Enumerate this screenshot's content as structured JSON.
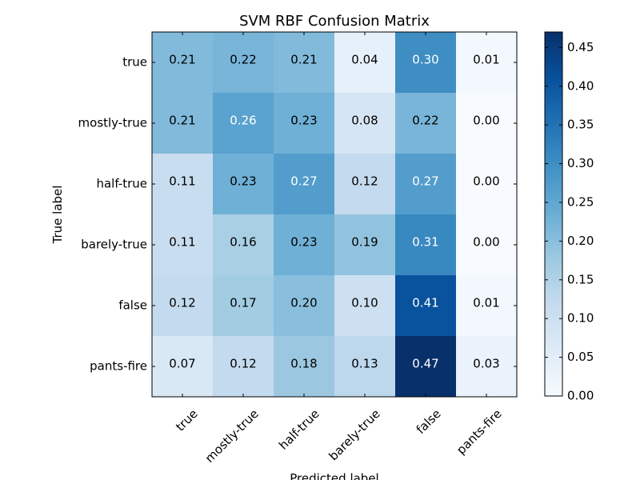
{
  "chart_data": {
    "type": "heatmap",
    "title": "SVM RBF Confusion Matrix",
    "xlabel": "Predicted label",
    "ylabel": "True label",
    "x_categories": [
      "true",
      "mostly-true",
      "half-true",
      "barely-true",
      "false",
      "pants-fire"
    ],
    "y_categories": [
      "true",
      "mostly-true",
      "half-true",
      "barely-true",
      "false",
      "pants-fire"
    ],
    "values": [
      [
        0.21,
        0.22,
        0.21,
        0.04,
        0.3,
        0.01
      ],
      [
        0.21,
        0.26,
        0.23,
        0.08,
        0.22,
        0.0
      ],
      [
        0.11,
        0.23,
        0.27,
        0.12,
        0.27,
        0.0
      ],
      [
        0.11,
        0.16,
        0.23,
        0.19,
        0.31,
        0.0
      ],
      [
        0.12,
        0.17,
        0.2,
        0.1,
        0.41,
        0.01
      ],
      [
        0.07,
        0.12,
        0.18,
        0.13,
        0.47,
        0.03
      ]
    ],
    "value_labels": [
      [
        "0.21",
        "0.22",
        "0.21",
        "0.04",
        "0.30",
        "0.01"
      ],
      [
        "0.21",
        "0.26",
        "0.23",
        "0.08",
        "0.22",
        "0.00"
      ],
      [
        "0.11",
        "0.23",
        "0.27",
        "0.12",
        "0.27",
        "0.00"
      ],
      [
        "0.11",
        "0.16",
        "0.23",
        "0.19",
        "0.31",
        "0.00"
      ],
      [
        "0.12",
        "0.17",
        "0.20",
        "0.10",
        "0.41",
        "0.01"
      ],
      [
        "0.07",
        "0.12",
        "0.18",
        "0.13",
        "0.47",
        "0.03"
      ]
    ],
    "colormap": "Blues",
    "color_range": [
      0,
      0.47
    ],
    "colorbar": {
      "ticks": [
        0.0,
        0.05,
        0.1,
        0.15,
        0.2,
        0.25,
        0.3,
        0.35,
        0.4,
        0.45
      ],
      "tick_labels": [
        "0.00",
        "0.05",
        "0.10",
        "0.15",
        "0.20",
        "0.25",
        "0.30",
        "0.35",
        "0.40",
        "0.45"
      ]
    },
    "grid": false,
    "x_tick_rotation": 45
  }
}
